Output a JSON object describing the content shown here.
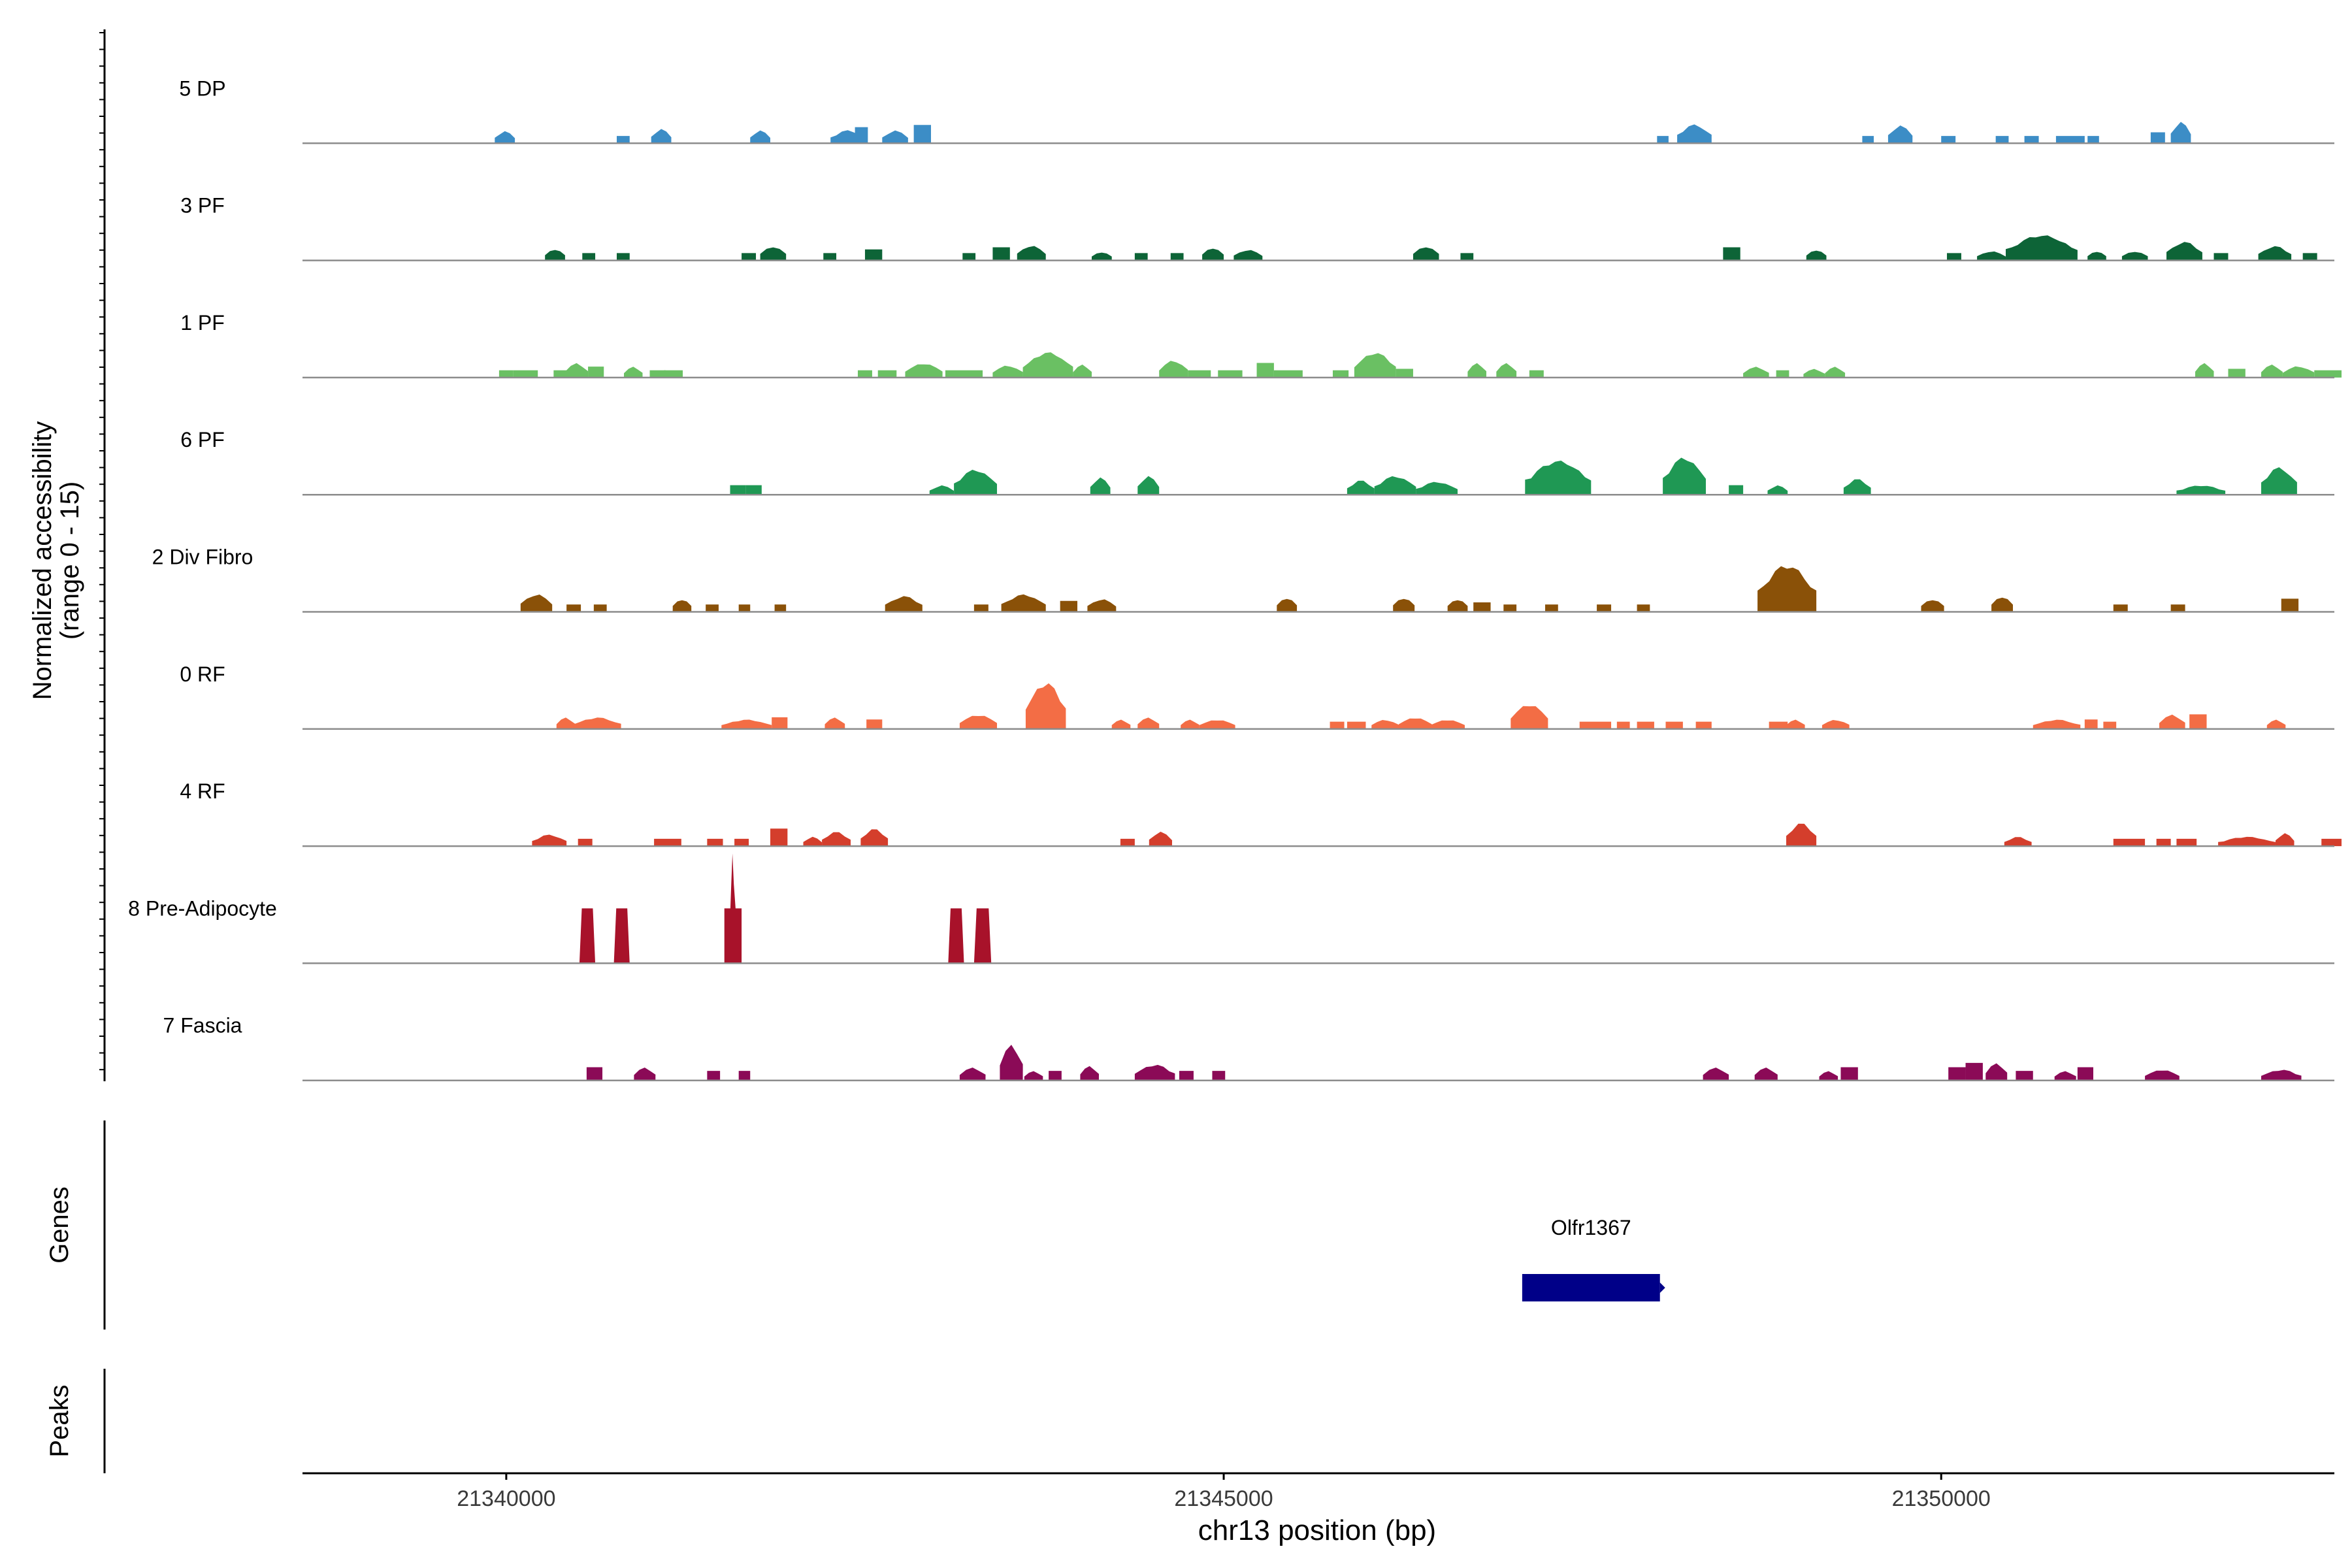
{
  "chart_data": {
    "type": "area",
    "ylabel_lines": [
      "Normalized accessibility",
      "(range 0 - 15)"
    ],
    "y_range": [
      0,
      15
    ],
    "xlabel": "chr13 position (bp)",
    "x_range": [
      21338580,
      21352740
    ],
    "x_ticks": [
      21340000,
      21345000,
      21350000
    ],
    "x_tick_labels": [
      "21340000",
      "21345000",
      "21350000"
    ],
    "grid": false,
    "legend": "none",
    "tracks": [
      {
        "name": "5 DP",
        "color": "#3c8dc6",
        "peaks": [
          [
            21339920,
            21340060,
            1.7
          ],
          [
            21340770,
            21340860,
            1.0
          ],
          [
            21341010,
            21341150,
            2.0
          ],
          [
            21341700,
            21341840,
            1.8
          ],
          [
            21342260,
            21342500,
            1.8
          ],
          [
            21342430,
            21342520,
            2.2
          ],
          [
            21342620,
            21342800,
            1.8
          ],
          [
            21342840,
            21342960,
            2.5
          ],
          [
            21348020,
            21348100,
            1.0
          ],
          [
            21348160,
            21348400,
            2.6
          ],
          [
            21349450,
            21349530,
            1.0
          ],
          [
            21349630,
            21349800,
            2.5
          ],
          [
            21350000,
            21350100,
            1.0
          ],
          [
            21350380,
            21350470,
            1.0
          ],
          [
            21350580,
            21350680,
            1.0
          ],
          [
            21350800,
            21351000,
            1.0
          ],
          [
            21351020,
            21351100,
            1.0
          ],
          [
            21351460,
            21351560,
            1.5
          ],
          [
            21351600,
            21351740,
            3.0
          ]
        ]
      },
      {
        "name": "3 PF",
        "color": "#0d6437",
        "peaks": [
          [
            21340270,
            21340410,
            1.6
          ],
          [
            21340530,
            21340620,
            1.0
          ],
          [
            21340770,
            21340860,
            1.0
          ],
          [
            21341640,
            21341740,
            1.0
          ],
          [
            21341770,
            21341950,
            2.0
          ],
          [
            21342210,
            21342300,
            1.0
          ],
          [
            21342500,
            21342620,
            1.5
          ],
          [
            21343180,
            21343270,
            1.0
          ],
          [
            21343390,
            21343510,
            1.8
          ],
          [
            21343560,
            21343760,
            2.1
          ],
          [
            21344080,
            21344220,
            1.2
          ],
          [
            21344380,
            21344470,
            1.0
          ],
          [
            21344630,
            21344720,
            1.0
          ],
          [
            21344850,
            21345000,
            1.8
          ],
          [
            21345070,
            21345270,
            1.5
          ],
          [
            21346320,
            21346500,
            2.0
          ],
          [
            21346650,
            21346740,
            1.0
          ],
          [
            21348480,
            21348600,
            1.8
          ],
          [
            21349060,
            21349200,
            1.5
          ],
          [
            21350040,
            21350140,
            1.0
          ],
          [
            21350250,
            21350450,
            1.3
          ],
          [
            21350450,
            21350950,
            3.5
          ],
          [
            21351020,
            21351150,
            1.3
          ],
          [
            21351260,
            21351440,
            1.3
          ],
          [
            21351570,
            21351820,
            2.6
          ],
          [
            21351900,
            21352000,
            1.0
          ],
          [
            21352210,
            21352440,
            2.0
          ],
          [
            21352520,
            21352620,
            1.0
          ]
        ]
      },
      {
        "name": "1 PF",
        "color": "#6ac063",
        "peaks": [
          [
            21339950,
            21340050,
            1.0
          ],
          [
            21340050,
            21340220,
            1.0
          ],
          [
            21340330,
            21340420,
            1.0
          ],
          [
            21340410,
            21340570,
            2.0
          ],
          [
            21340570,
            21340680,
            1.5
          ],
          [
            21340820,
            21340950,
            1.5
          ],
          [
            21341000,
            21341110,
            1.0
          ],
          [
            21341100,
            21341230,
            1.0
          ],
          [
            21342450,
            21342550,
            1.0
          ],
          [
            21342590,
            21342720,
            1.0
          ],
          [
            21342780,
            21343040,
            2.0
          ],
          [
            21343060,
            21343320,
            1.0
          ],
          [
            21343390,
            21343600,
            1.7
          ],
          [
            21343600,
            21343950,
            3.5
          ],
          [
            21343950,
            21344080,
            1.8
          ],
          [
            21344550,
            21344750,
            2.4
          ],
          [
            21344750,
            21344910,
            1.0
          ],
          [
            21344960,
            21345130,
            1.0
          ],
          [
            21345230,
            21345350,
            2.0
          ],
          [
            21345350,
            21345550,
            1.0
          ],
          [
            21345760,
            21345870,
            1.0
          ],
          [
            21345910,
            21346200,
            3.5
          ],
          [
            21346200,
            21346320,
            1.2
          ],
          [
            21346700,
            21346830,
            2.0
          ],
          [
            21346900,
            21347040,
            2.0
          ],
          [
            21347130,
            21347230,
            1.0
          ],
          [
            21348620,
            21348800,
            1.5
          ],
          [
            21348850,
            21348940,
            1.0
          ],
          [
            21349040,
            21349190,
            1.2
          ],
          [
            21349190,
            21349330,
            1.5
          ],
          [
            21351770,
            21351900,
            2.0
          ],
          [
            21352000,
            21352120,
            1.2
          ],
          [
            21352230,
            21352380,
            1.8
          ],
          [
            21352380,
            21352600,
            1.6
          ],
          [
            21352600,
            21352790,
            1.0
          ]
        ]
      },
      {
        "name": "6 PF",
        "color": "#1f9854",
        "peaks": [
          [
            21341560,
            21341670,
            1.3
          ],
          [
            21341670,
            21341780,
            1.3
          ],
          [
            21342950,
            21343120,
            1.3
          ],
          [
            21343120,
            21343420,
            3.5
          ],
          [
            21344070,
            21344210,
            2.4
          ],
          [
            21344400,
            21344550,
            2.6
          ],
          [
            21345860,
            21346050,
            2.0
          ],
          [
            21346050,
            21346340,
            2.6
          ],
          [
            21346340,
            21346630,
            1.8
          ],
          [
            21347100,
            21347560,
            4.7
          ],
          [
            21348060,
            21348360,
            5.2
          ],
          [
            21348520,
            21348620,
            1.3
          ],
          [
            21348790,
            21348930,
            1.3
          ],
          [
            21349320,
            21349510,
            2.2
          ],
          [
            21351640,
            21351980,
            1.3
          ],
          [
            21352230,
            21352480,
            3.8
          ]
        ]
      },
      {
        "name": "2 Div Fibro",
        "color": "#8a5108",
        "peaks": [
          [
            21340100,
            21340320,
            2.5
          ],
          [
            21340420,
            21340520,
            1.0
          ],
          [
            21340610,
            21340700,
            1.0
          ],
          [
            21341160,
            21341290,
            1.8
          ],
          [
            21341390,
            21341480,
            1.0
          ],
          [
            21341620,
            21341700,
            1.0
          ],
          [
            21341870,
            21341950,
            1.0
          ],
          [
            21342640,
            21342900,
            2.2
          ],
          [
            21343260,
            21343360,
            1.0
          ],
          [
            21343450,
            21343760,
            2.4
          ],
          [
            21343860,
            21343980,
            1.5
          ],
          [
            21344050,
            21344250,
            1.8
          ],
          [
            21345370,
            21345510,
            2.0
          ],
          [
            21346180,
            21346330,
            2.0
          ],
          [
            21346560,
            21346700,
            1.8
          ],
          [
            21346740,
            21346860,
            1.3
          ],
          [
            21346950,
            21347040,
            1.0
          ],
          [
            21347240,
            21347330,
            1.0
          ],
          [
            21347600,
            21347700,
            1.0
          ],
          [
            21347880,
            21347970,
            1.0
          ],
          [
            21348720,
            21349130,
            6.5
          ],
          [
            21349860,
            21350020,
            1.8
          ],
          [
            21350350,
            21350500,
            2.2
          ],
          [
            21351200,
            21351300,
            1.0
          ],
          [
            21351600,
            21351700,
            1.0
          ],
          [
            21352370,
            21352490,
            1.8
          ]
        ]
      },
      {
        "name": "0 RF",
        "color": "#f36d45",
        "peaks": [
          [
            21340350,
            21340480,
            1.6
          ],
          [
            21340470,
            21340800,
            1.6
          ],
          [
            21341500,
            21341850,
            1.3
          ],
          [
            21341850,
            21341960,
            1.6
          ],
          [
            21342220,
            21342360,
            1.6
          ],
          [
            21342510,
            21342620,
            1.3
          ],
          [
            21343160,
            21343420,
            2.0
          ],
          [
            21343620,
            21343900,
            6.5
          ],
          [
            21344220,
            21344350,
            1.3
          ],
          [
            21344400,
            21344550,
            1.6
          ],
          [
            21344700,
            21344830,
            1.3
          ],
          [
            21344830,
            21345080,
            1.3
          ],
          [
            21345740,
            21345840,
            1.0
          ],
          [
            21345860,
            21345990,
            1.0
          ],
          [
            21346030,
            21346220,
            1.3
          ],
          [
            21346220,
            21346450,
            1.6
          ],
          [
            21346440,
            21346680,
            1.3
          ],
          [
            21347000,
            21347260,
            3.5
          ],
          [
            21347480,
            21347700,
            1.0
          ],
          [
            21347740,
            21347830,
            1.0
          ],
          [
            21347880,
            21348000,
            1.0
          ],
          [
            21348080,
            21348200,
            1.0
          ],
          [
            21348290,
            21348400,
            1.0
          ],
          [
            21348800,
            21348930,
            1.0
          ],
          [
            21348920,
            21349050,
            1.3
          ],
          [
            21349170,
            21349360,
            1.3
          ],
          [
            21350640,
            21350970,
            1.3
          ],
          [
            21351000,
            21351090,
            1.3
          ],
          [
            21351130,
            21351220,
            1.0
          ],
          [
            21351520,
            21351700,
            2.0
          ],
          [
            21351730,
            21351850,
            2.0
          ],
          [
            21352270,
            21352400,
            1.3
          ]
        ]
      },
      {
        "name": "4 RF",
        "color": "#d43e2c",
        "peaks": [
          [
            21340180,
            21340420,
            1.6
          ],
          [
            21340500,
            21340600,
            1.0
          ],
          [
            21341030,
            21341220,
            1.0
          ],
          [
            21341400,
            21341510,
            1.0
          ],
          [
            21341590,
            21341690,
            1.0
          ],
          [
            21341840,
            21341960,
            2.4
          ],
          [
            21342070,
            21342200,
            1.3
          ],
          [
            21342200,
            21342400,
            2.0
          ],
          [
            21342470,
            21342660,
            2.4
          ],
          [
            21344280,
            21344380,
            1.0
          ],
          [
            21344480,
            21344640,
            2.0
          ],
          [
            21348920,
            21349130,
            3.2
          ],
          [
            21350440,
            21350630,
            1.3
          ],
          [
            21351200,
            21351420,
            1.0
          ],
          [
            21351500,
            21351600,
            1.0
          ],
          [
            21351640,
            21351780,
            1.0
          ],
          [
            21351930,
            21352330,
            1.3
          ],
          [
            21352330,
            21352460,
            1.8
          ],
          [
            21352650,
            21352790,
            1.0
          ]
        ]
      },
      {
        "name": "8 Pre-Adipocyte",
        "color": "#a8122a",
        "peaks": [
          [
            21340510,
            21340620,
            7.5,
            "trap"
          ],
          [
            21340750,
            21340860,
            7.5,
            "trap"
          ],
          [
            21341520,
            21341640,
            15.0,
            "stack"
          ],
          [
            21343080,
            21343190,
            7.5,
            "trap"
          ],
          [
            21343260,
            21343380,
            7.5,
            "trap"
          ]
        ]
      },
      {
        "name": "7 Fascia",
        "color": "#8b0a57",
        "peaks": [
          [
            21340560,
            21340670,
            1.8
          ],
          [
            21340890,
            21341040,
            1.8
          ],
          [
            21341400,
            21341490,
            1.3
          ],
          [
            21341620,
            21341700,
            1.3
          ],
          [
            21343160,
            21343340,
            1.8
          ],
          [
            21343440,
            21343600,
            5.0
          ],
          [
            21343610,
            21343740,
            1.3
          ],
          [
            21343780,
            21343870,
            1.3
          ],
          [
            21344000,
            21344130,
            2.0
          ],
          [
            21344380,
            21344660,
            2.2
          ],
          [
            21344690,
            21344790,
            1.3
          ],
          [
            21344920,
            21345010,
            1.3
          ],
          [
            21348340,
            21348520,
            1.8
          ],
          [
            21348700,
            21348860,
            1.8
          ],
          [
            21349150,
            21349280,
            1.3
          ],
          [
            21349300,
            21349420,
            1.8
          ],
          [
            21350050,
            21350170,
            1.8
          ],
          [
            21350170,
            21350290,
            2.4
          ],
          [
            21350310,
            21350460,
            2.4
          ],
          [
            21350520,
            21350640,
            1.3
          ],
          [
            21350790,
            21350940,
            1.3
          ],
          [
            21350950,
            21351060,
            1.8
          ],
          [
            21351420,
            21351660,
            1.5
          ],
          [
            21352230,
            21352510,
            1.5
          ]
        ]
      }
    ],
    "genes": {
      "title": "Genes",
      "items": [
        {
          "name": "Olfr1367",
          "start": 21347080,
          "end": 21348040,
          "color": "#000088"
        }
      ]
    },
    "peaks_track": {
      "title": "Peaks",
      "items": []
    }
  }
}
